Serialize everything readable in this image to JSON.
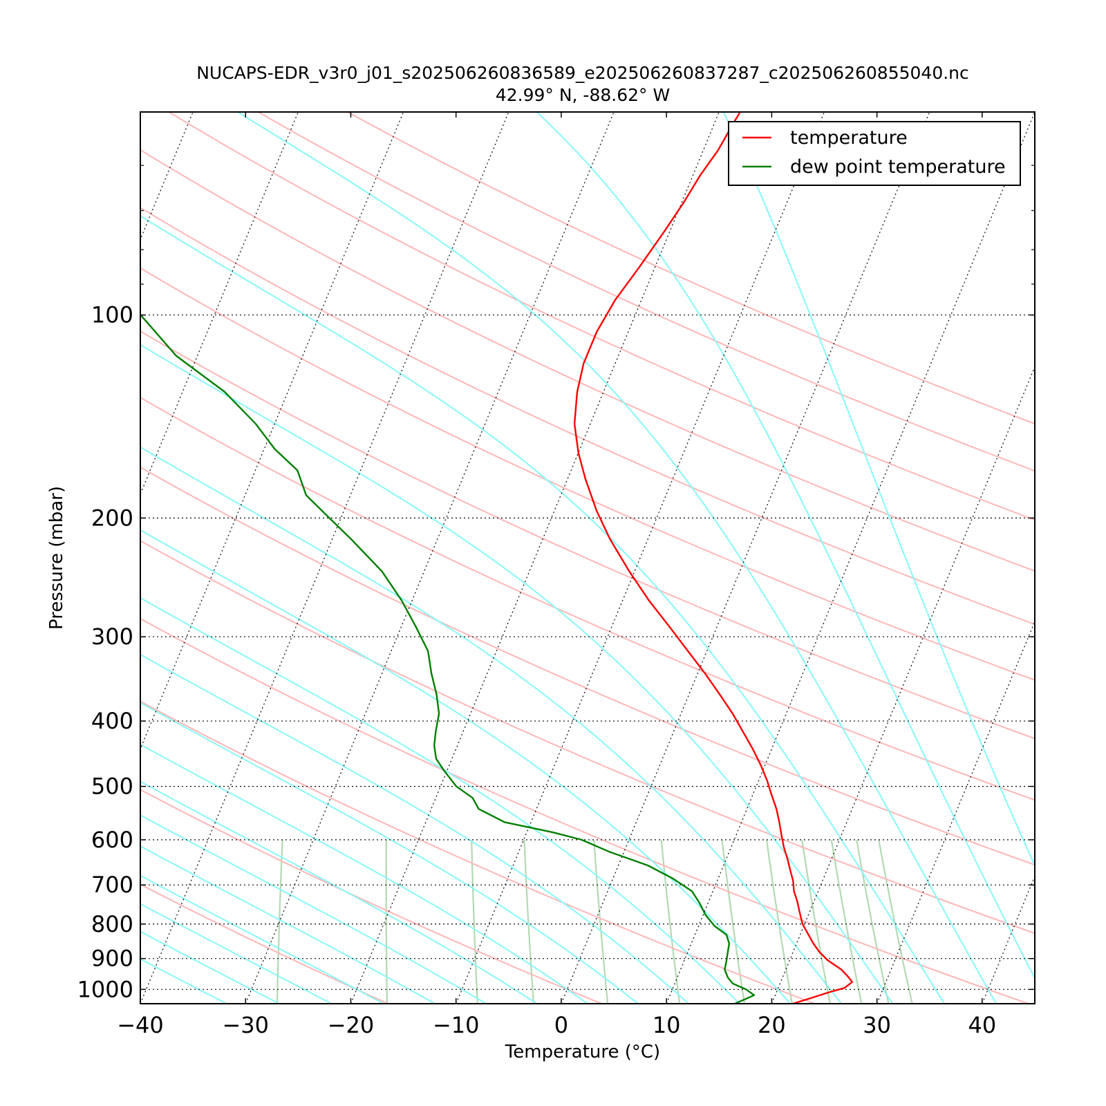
{
  "chart_data": {
    "type": "line",
    "subtype": "skew-t log-p",
    "title": "NUCAPS-EDR_v3r0_j01_s202506260836589_e202506260837287_c202506260855040.nc",
    "subtitle": "42.99° N, -88.62° W",
    "xlabel": "Temperature (°C)",
    "ylabel": "Pressure (mbar)",
    "xlim": [
      -40,
      45
    ],
    "ylim": [
      1050,
      50
    ],
    "y_scale": "log",
    "x_ticks": [
      -40,
      -30,
      -20,
      -10,
      0,
      10,
      20,
      30,
      40
    ],
    "x_tick_labels": [
      "−40",
      "−30",
      "−20",
      "−10",
      "0",
      "10",
      "20",
      "30",
      "40"
    ],
    "y_ticks": [
      100,
      200,
      300,
      400,
      500,
      600,
      700,
      800,
      900,
      1000
    ],
    "y_tick_labels": [
      "100",
      "200",
      "300",
      "400",
      "500",
      "600",
      "700",
      "800",
      "900",
      "1000"
    ],
    "y_minor_ticks": [
      50,
      60,
      70,
      80,
      90
    ],
    "grid": "dotted horizontal isobars at labeled pressures and dotted skewed isotherms",
    "skew_reference": "isotherm slope in display units",
    "legend_position": "top-right",
    "colors": {
      "temperature": "#ff0000",
      "dewpoint": "#007f00",
      "dry_adiabats": "#ffb6b6",
      "moist_adiabats": "#88f8f8",
      "mixing_ratio": "#b3d9b3",
      "isobar_grid": "#000000"
    },
    "series": [
      {
        "name": "temperature",
        "pressure": [
          1050,
          1030,
          1010,
          995,
          975,
          955,
          935,
          905,
          880,
          855,
          830,
          800,
          770,
          740,
          715,
          690,
          665,
          640,
          615,
          590,
          565,
          540,
          515,
          490,
          465,
          440,
          415,
          390,
          365,
          340,
          315,
          290,
          265,
          240,
          215,
          195,
          175,
          160,
          145,
          130,
          118,
          106,
          95,
          85,
          75,
          68,
          62,
          57,
          52,
          50
        ],
        "values": [
          22.0,
          23.5,
          25.0,
          26.3,
          26.8,
          26.1,
          25.3,
          23.6,
          22.5,
          21.6,
          20.8,
          19.8,
          19.1,
          18.4,
          17.7,
          17.2,
          16.5,
          15.8,
          15.0,
          14.3,
          13.6,
          12.8,
          11.8,
          10.8,
          9.6,
          8.2,
          6.6,
          4.9,
          2.9,
          0.7,
          -1.8,
          -4.5,
          -7.5,
          -10.5,
          -13.6,
          -16.0,
          -18.3,
          -20.0,
          -21.5,
          -22.5,
          -23.0,
          -23.0,
          -22.5,
          -21.5,
          -20.5,
          -19.8,
          -19.3,
          -18.6,
          -18.2,
          -18.0
        ]
      },
      {
        "name": "dew point temperature",
        "pressure": [
          1050,
          1020,
          1000,
          980,
          960,
          935,
          905,
          880,
          855,
          830,
          805,
          775,
          745,
          715,
          685,
          655,
          625,
          600,
          585,
          565,
          540,
          520,
          500,
          475,
          455,
          435,
          415,
          390,
          365,
          340,
          315,
          290,
          265,
          240,
          215,
          200,
          185,
          170,
          158,
          145,
          130,
          115,
          100,
          85,
          70,
          58,
          50
        ],
        "values": [
          16.5,
          18.0,
          17.0,
          15.5,
          14.8,
          14.2,
          14.0,
          13.8,
          13.6,
          13.0,
          11.5,
          10.2,
          9.2,
          8.0,
          5.7,
          2.8,
          -1.4,
          -4.5,
          -7.5,
          -12.5,
          -15.5,
          -16.5,
          -18.5,
          -20.2,
          -21.5,
          -22.2,
          -22.6,
          -23.0,
          -24.0,
          -25.3,
          -26.5,
          -28.6,
          -31.0,
          -34.0,
          -38.2,
          -41.1,
          -44.2,
          -46.0,
          -49.0,
          -51.8,
          -56.0,
          -62.0,
          -67.0,
          -74.5,
          -83.0,
          -91.0,
          -96.0
        ]
      }
    ]
  },
  "legend": {
    "items": [
      {
        "label": "temperature",
        "color": "#ff0000"
      },
      {
        "label": "dew point temperature",
        "color": "#007f00"
      }
    ]
  }
}
